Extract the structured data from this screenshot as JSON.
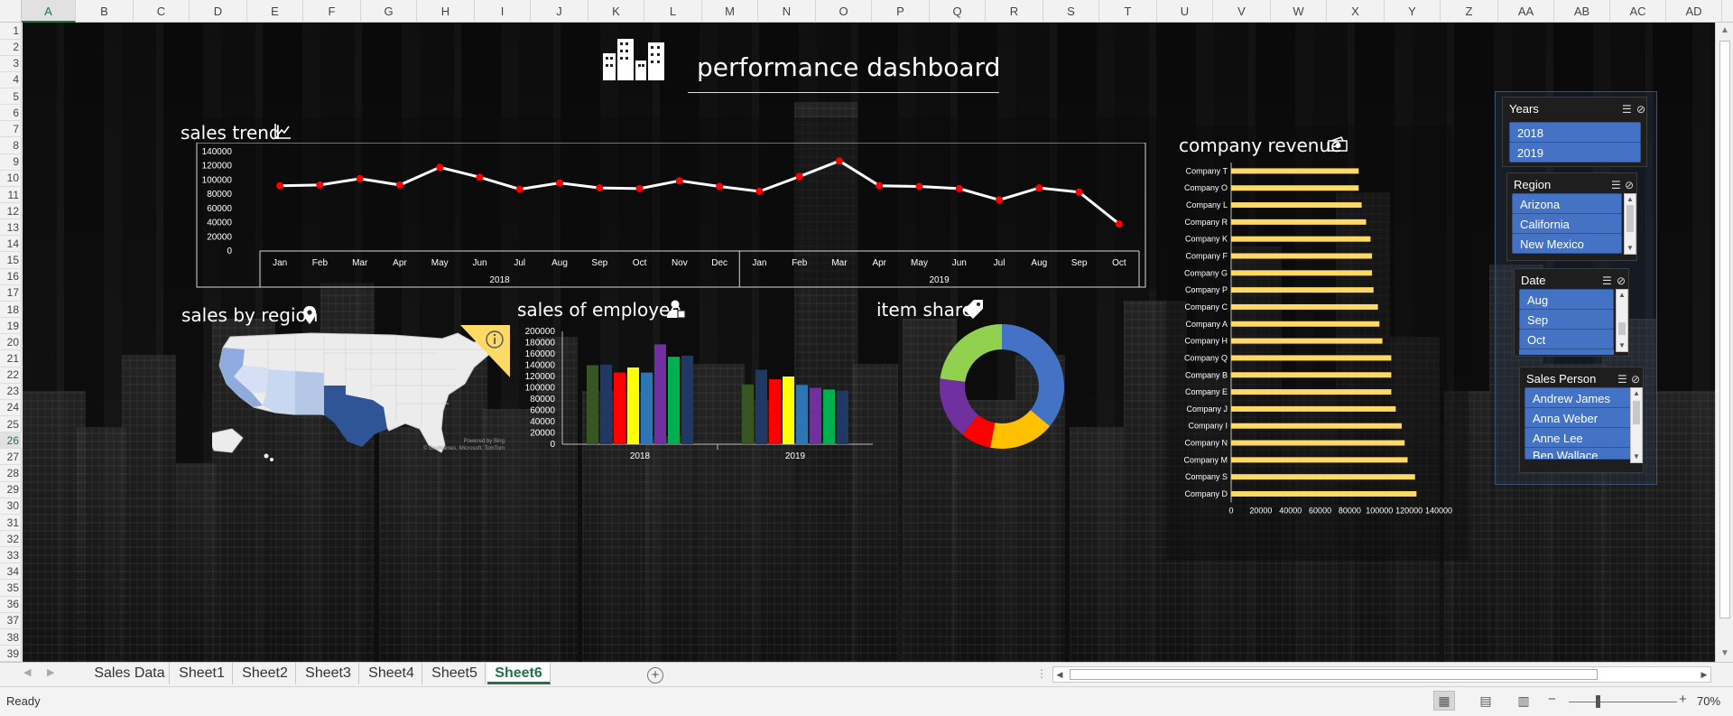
{
  "app": {
    "status": "Ready",
    "zoom": "70%"
  },
  "grid": {
    "columns": [
      "A",
      "B",
      "C",
      "D",
      "E",
      "F",
      "G",
      "H",
      "I",
      "J",
      "K",
      "L",
      "M",
      "N",
      "O",
      "P",
      "Q",
      "R",
      "S",
      "T",
      "U",
      "V",
      "W",
      "X",
      "Y",
      "Z",
      "AA",
      "AB",
      "AC",
      "AD"
    ],
    "active_column": "A",
    "rows": [
      "1",
      "2",
      "3",
      "4",
      "5",
      "6",
      "7",
      "8",
      "9",
      "10",
      "11",
      "12",
      "13",
      "14",
      "15",
      "16",
      "17",
      "18",
      "19",
      "20",
      "21",
      "22",
      "23",
      "24",
      "25",
      "26",
      "27",
      "28",
      "29",
      "30",
      "31",
      "32",
      "33",
      "34",
      "35",
      "36",
      "37",
      "38",
      "39"
    ],
    "active_row": "26"
  },
  "dashboard": {
    "title": "performance dashboard",
    "sales_trend": {
      "title": "sales trend",
      "icon": "line-chart-icon",
      "year_labels": [
        "2018",
        "2019"
      ]
    },
    "sales_by_region": {
      "title": "sales by region",
      "icon": "location-pin-icon",
      "info_icon": "info-icon",
      "credit_line1": "Powered by Bing",
      "credit_line2": "© GeoNames, Microsoft, TomTom"
    },
    "sales_of_employee": {
      "title": "sales of employee",
      "icon": "person-icon"
    },
    "item_share": {
      "title": "item share",
      "icon": "tag-icon"
    },
    "company_revenue": {
      "title": "company revenue",
      "icon": "money-icon"
    }
  },
  "chart_data": [
    {
      "id": "sales_trend",
      "type": "line",
      "title": "sales trend",
      "categories": [
        "Jan",
        "Feb",
        "Mar",
        "Apr",
        "May",
        "Jun",
        "Jul",
        "Aug",
        "Sep",
        "Oct",
        "Nov",
        "Dec",
        "Jan",
        "Feb",
        "Mar",
        "Apr",
        "May",
        "Jun",
        "Jul",
        "Aug",
        "Sep",
        "Oct"
      ],
      "groups": [
        {
          "label": "2018",
          "count": 12
        },
        {
          "label": "2019",
          "count": 10
        }
      ],
      "values": [
        92000,
        93000,
        102000,
        93000,
        118000,
        104000,
        87000,
        96000,
        89000,
        88000,
        99000,
        91000,
        84000,
        105000,
        127000,
        92000,
        91000,
        88000,
        72000,
        89000,
        83000,
        38000
      ],
      "yticks": [
        0,
        20000,
        40000,
        60000,
        80000,
        100000,
        120000,
        140000
      ],
      "ylim": [
        0,
        140000
      ],
      "line_color": "#ffffff",
      "marker_color": "#ff0000"
    },
    {
      "id": "sales_of_employee",
      "type": "bar",
      "title": "sales of employee",
      "categories": [
        "2018",
        "2019"
      ],
      "series": [
        {
          "color": "#375623",
          "values": [
            140000,
            106000
          ]
        },
        {
          "color": "#1f3864",
          "values": [
            141000,
            132000
          ]
        },
        {
          "color": "#ff0000",
          "values": [
            127000,
            115000
          ]
        },
        {
          "color": "#ffff00",
          "values": [
            136000,
            120000
          ]
        },
        {
          "color": "#2e75b6",
          "values": [
            127000,
            105000
          ]
        },
        {
          "color": "#7030a0",
          "values": [
            177000,
            100000
          ]
        },
        {
          "color": "#00b050",
          "values": [
            155000,
            97000
          ]
        },
        {
          "color": "#203864",
          "values": [
            157000,
            95000
          ]
        }
      ],
      "yticks": [
        0,
        20000,
        40000,
        60000,
        80000,
        100000,
        120000,
        140000,
        160000,
        180000,
        200000
      ],
      "ylim": [
        0,
        200000
      ]
    },
    {
      "id": "item_share",
      "type": "pie",
      "title": "item share",
      "donut": true,
      "values": [
        36,
        17,
        8,
        16,
        23
      ],
      "colors": [
        "#4472c4",
        "#ffc000",
        "#ff0000",
        "#7030a0",
        "#92d050"
      ]
    },
    {
      "id": "company_revenue",
      "type": "bar",
      "orientation": "horizontal",
      "title": "company revenue",
      "categories": [
        "Company T",
        "Company O",
        "Company L",
        "Company R",
        "Company K",
        "Company F",
        "Company G",
        "Company P",
        "Company C",
        "Company A",
        "Company H",
        "Company Q",
        "Company B",
        "Company E",
        "Company J",
        "Company I",
        "Company N",
        "Company M",
        "Company S",
        "Company D"
      ],
      "values": [
        86000,
        86000,
        88000,
        91000,
        94000,
        95000,
        95000,
        96000,
        99000,
        100000,
        102000,
        108000,
        108000,
        108000,
        111000,
        115000,
        117000,
        119000,
        124000,
        125000
      ],
      "xticks": [
        0,
        20000,
        40000,
        60000,
        80000,
        100000,
        120000,
        140000
      ],
      "xlim": [
        0,
        140000
      ],
      "bar_color": "#ffd966"
    },
    {
      "id": "sales_by_region",
      "type": "map",
      "title": "sales by region",
      "highlighted_states": [
        "California",
        "Arizona",
        "New Mexico",
        "Texas",
        "Nevada",
        "Oregon"
      ]
    }
  ],
  "slicers": {
    "years": {
      "title": "Years",
      "items": [
        "2018",
        "2019"
      ]
    },
    "region": {
      "title": "Region",
      "items": [
        "Arizona",
        "California",
        "New Mexico"
      ]
    },
    "date": {
      "title": "Date",
      "items": [
        "Aug",
        "Sep",
        "Oct"
      ]
    },
    "sales_person": {
      "title": "Sales Person",
      "items": [
        "Andrew James",
        "Anna Weber",
        "Anne Lee",
        "Ben Wallace"
      ]
    },
    "icons": {
      "multi_select": "multi-select-icon",
      "clear_filter": "clear-filter-icon"
    }
  },
  "sheet_tabs": [
    "Sales Data",
    "Sheet1",
    "Sheet2",
    "Sheet3",
    "Sheet4",
    "Sheet5",
    "Sheet6"
  ],
  "active_tab": "Sheet6"
}
